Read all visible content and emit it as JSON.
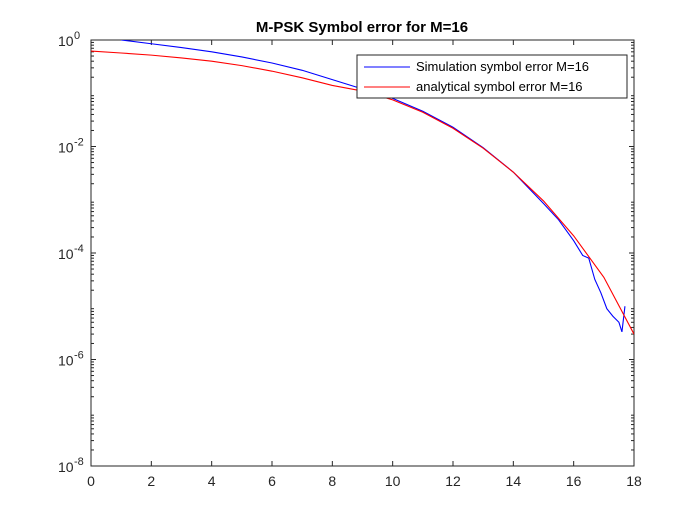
{
  "chart_data": {
    "type": "line",
    "title": "M-PSK Symbol error for M=16",
    "xlabel": "",
    "ylabel": "",
    "y_scale": "log",
    "xlim": [
      0,
      18
    ],
    "ylim": [
      1e-08,
      1
    ],
    "x_ticks": [
      "0",
      "2",
      "4",
      "6",
      "8",
      "10",
      "12",
      "14",
      "16",
      "18"
    ],
    "y_ticks": [
      {
        "base": "10",
        "exp": "0"
      },
      {
        "base": "10",
        "exp": "-2"
      },
      {
        "base": "10",
        "exp": "-4"
      },
      {
        "base": "10",
        "exp": "-6"
      },
      {
        "base": "10",
        "exp": "-8"
      }
    ],
    "grid": false,
    "legend_position": "top-right",
    "series": [
      {
        "name": "Simulation symbol error M=16",
        "color": "#0000ff",
        "points": [
          [
            1,
            1.0
          ],
          [
            2,
            0.85
          ],
          [
            3,
            0.72
          ],
          [
            4,
            0.6
          ],
          [
            5,
            0.48
          ],
          [
            6,
            0.37
          ],
          [
            7,
            0.27
          ],
          [
            8,
            0.18
          ],
          [
            9,
            0.12
          ],
          [
            10,
            0.08
          ],
          [
            11,
            0.046
          ],
          [
            12,
            0.023
          ],
          [
            13,
            0.0095
          ],
          [
            14,
            0.0033
          ],
          [
            15,
            0.00085
          ],
          [
            15.5,
            0.00042
          ],
          [
            16,
            0.00017
          ],
          [
            16.3,
            9e-05
          ],
          [
            16.5,
            8e-05
          ],
          [
            16.7,
            3.2e-05
          ],
          [
            16.9,
            1.8e-05
          ],
          [
            17.1,
            9e-06
          ],
          [
            17.3,
            6.5e-06
          ],
          [
            17.5,
            5e-06
          ],
          [
            17.6,
            3.3e-06
          ],
          [
            17.7,
            1e-05
          ]
        ]
      },
      {
        "name": "analytical symbol error M=16",
        "color": "#ff0000",
        "points": [
          [
            0,
            0.62
          ],
          [
            1,
            0.57
          ],
          [
            2,
            0.52
          ],
          [
            3,
            0.46
          ],
          [
            4,
            0.4
          ],
          [
            5,
            0.33
          ],
          [
            6,
            0.26
          ],
          [
            7,
            0.195
          ],
          [
            8,
            0.14
          ],
          [
            9,
            0.11
          ],
          [
            10,
            0.075
          ],
          [
            11,
            0.044
          ],
          [
            12,
            0.022
          ],
          [
            13,
            0.0093
          ],
          [
            14,
            0.0033
          ],
          [
            15,
            0.00095
          ],
          [
            16,
            0.00021
          ],
          [
            17,
            3.5e-05
          ],
          [
            18,
            3e-06
          ]
        ]
      }
    ]
  }
}
